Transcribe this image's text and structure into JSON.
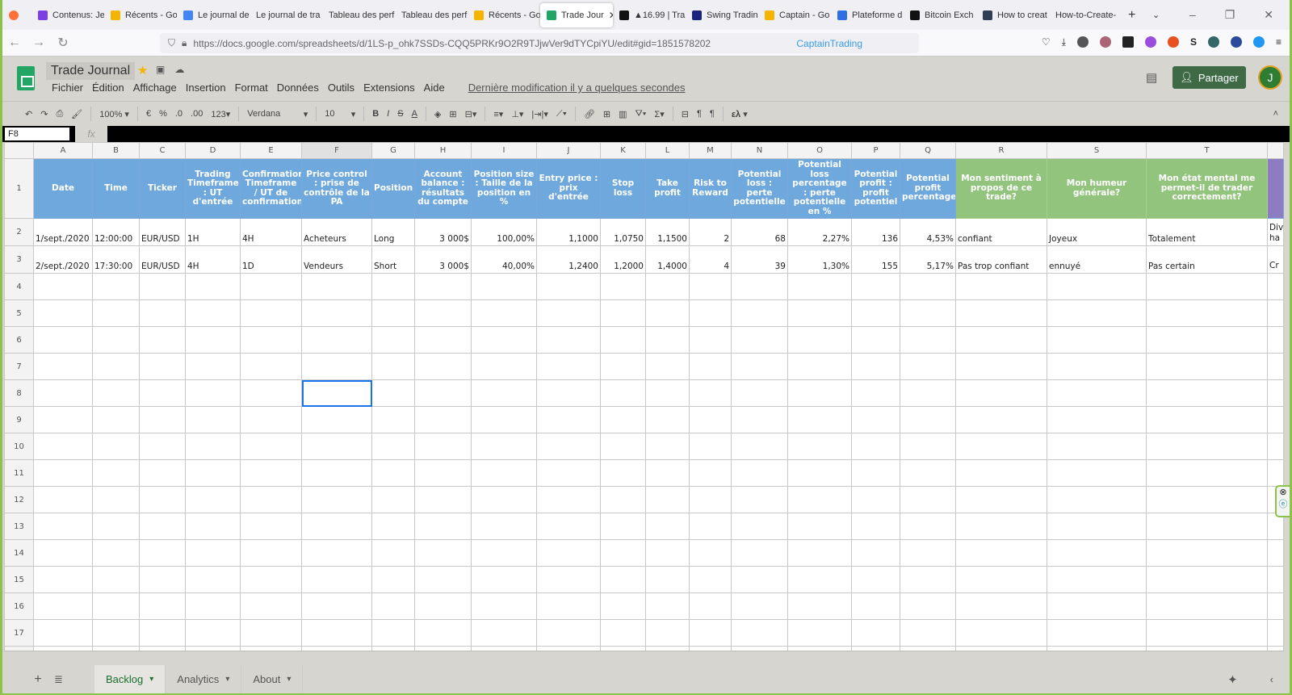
{
  "browser": {
    "tabs": [
      {
        "label": "Contenus: Je",
        "color": "#7b3fe4"
      },
      {
        "label": "Récents - Go",
        "color": "#f4b400"
      },
      {
        "label": "Le journal de",
        "color": "#4285f4"
      },
      {
        "label": "Le journal de tra",
        "color": ""
      },
      {
        "label": "Tableau des perf",
        "color": ""
      },
      {
        "label": "Tableau des perf",
        "color": ""
      },
      {
        "label": "Récents - Go",
        "color": "#f4b400"
      },
      {
        "label": "Trade Jour",
        "color": "#23a566",
        "active": true
      },
      {
        "label": "▲16.99 | Tra",
        "color": "#111"
      },
      {
        "label": "Swing Tradin",
        "color": "#1a237e"
      },
      {
        "label": "Captain - Go",
        "color": "#f4b400"
      },
      {
        "label": "Plateforme d",
        "color": "#2f6fe4"
      },
      {
        "label": "Bitcoin Exch",
        "color": "#111"
      },
      {
        "label": "How to creat",
        "color": "#2f3e54"
      },
      {
        "label": "How-to-Create-",
        "color": ""
      }
    ],
    "url": "https://docs.google.com/spreadsheets/d/1LS-p_ohk7SSDs-CQQ5PRKr9O2R9TJjwVer9dTYCpiYU/edit#gid=1851578202",
    "url_ext": "CaptainTrading"
  },
  "doc": {
    "title": "Trade Journal",
    "menu": [
      "Fichier",
      "Édition",
      "Affichage",
      "Insertion",
      "Format",
      "Données",
      "Outils",
      "Extensions",
      "Aide"
    ],
    "last_modified": "Dernière modification il y a quelques secondes",
    "share": "Partager",
    "avatar": "J"
  },
  "toolbar": {
    "zoom": "100%",
    "currency": "€",
    "percent": "%",
    "dec_less": ".0",
    "dec_more": ".00",
    "format": "123",
    "font": "Verdana",
    "size": "10"
  },
  "formula_bar": {
    "cell": "F8",
    "fx": "fx",
    "value": ""
  },
  "columns": [
    "A",
    "B",
    "C",
    "D",
    "E",
    "F",
    "G",
    "H",
    "I",
    "J",
    "K",
    "L",
    "M",
    "N",
    "O",
    "P",
    "Q",
    "R",
    "S",
    "T",
    ""
  ],
  "headers": [
    "Date",
    "Time",
    "Ticker",
    "Trading Timeframe : UT d'entrée",
    "Confirmation Timeframe / UT de confirmation",
    "Price control : prise de contrôle de la PA",
    "Position",
    "Account balance : résultats du compte",
    "Position size : Taille de la position en %",
    "Entry price : prix d'entrée",
    "Stop loss",
    "Take profit",
    "Risk to Reward",
    "Potential loss : perte potentielle",
    "Potential loss percentage : perte potentielle en %",
    "Potential profit : profit potentiel",
    "Potential profit percentage",
    "Mon sentiment à propos de ce trade?",
    "Mon humeur générale?",
    "Mon état mental me permet-il de trader correctement?",
    ""
  ],
  "header_colors": {
    "blue": "#6fa8dc",
    "green": "#93c47d",
    "purple": "#8e7cc3"
  },
  "rows": [
    [
      "1/sept./2020",
      "12:00:00",
      "EUR/USD",
      "1H",
      "4H",
      "Acheteurs",
      "Long",
      "3 000$",
      "100,00%",
      "1,1000",
      "1,0750",
      "1,1500",
      "2",
      "68",
      "2,27%",
      "136",
      "4,53%",
      "confiant",
      "Joyeux",
      "Totalement",
      "Div ha"
    ],
    [
      "2/sept./2020",
      "17:30:00",
      "EUR/USD",
      "4H",
      "1D",
      "Vendeurs",
      "Short",
      "3 000$",
      "40,00%",
      "1,2400",
      "1,2000",
      "1,4000",
      "4",
      "39",
      "1,30%",
      "155",
      "5,17%",
      "Pas trop confiant",
      "ennuyé",
      "Pas certain",
      "Cr"
    ]
  ],
  "selected_cell": "F8",
  "sheets": [
    {
      "label": "Backlog",
      "active": true
    },
    {
      "label": "Analytics"
    },
    {
      "label": "About"
    }
  ]
}
